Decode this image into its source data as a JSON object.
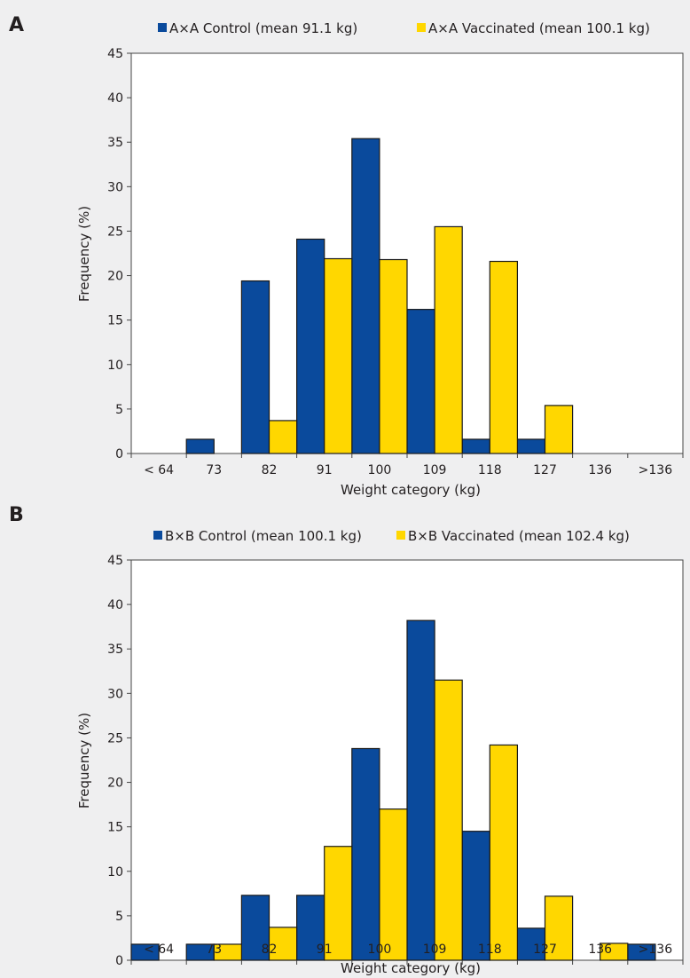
{
  "colors": {
    "control": "#0a4a9c",
    "vaccinated": "#ffd700",
    "edge": "#1a1a1a",
    "plot_bg": "#ffffff"
  },
  "chart_data": [
    {
      "type": "bar",
      "panel_label": "A",
      "categories": [
        "< 64",
        "73",
        "82",
        "91",
        "100",
        "109",
        "118",
        "127",
        "136",
        ">136"
      ],
      "series": [
        {
          "name": "A×A Control (mean 91.1 kg)",
          "key": "control",
          "values": [
            0,
            1.6,
            19.4,
            24.1,
            35.4,
            16.2,
            1.6,
            1.6,
            0,
            0
          ]
        },
        {
          "name": "A×A Vaccinated (mean 100.1 kg)",
          "key": "vaccinated",
          "values": [
            0,
            0,
            3.7,
            21.9,
            21.8,
            25.5,
            21.6,
            5.4,
            0,
            0
          ]
        }
      ],
      "xlabel": "Weight category (kg)",
      "ylabel": "Frequency (%)",
      "ylim": [
        0,
        45
      ],
      "yticks": [
        0,
        5,
        10,
        15,
        20,
        25,
        30,
        35,
        40,
        45
      ],
      "grid": false,
      "legend": "top"
    },
    {
      "type": "bar",
      "panel_label": "B",
      "categories": [
        "< 64",
        "73",
        "82",
        "91",
        "100",
        "109",
        "118",
        "127",
        "136",
        ">136"
      ],
      "series": [
        {
          "name": "B×B Control (mean 100.1 kg)",
          "key": "control",
          "values": [
            1.8,
            1.8,
            7.3,
            7.3,
            23.8,
            38.2,
            14.5,
            3.6,
            0,
            1.8
          ]
        },
        {
          "name": "B×B Vaccinated (mean 102.4 kg)",
          "key": "vaccinated",
          "values": [
            0,
            1.8,
            3.7,
            12.8,
            17.0,
            31.5,
            24.2,
            7.2,
            1.9,
            0
          ]
        }
      ],
      "xlabel": "Weight category (kg)",
      "ylabel": "Frequency (%)",
      "ylim": [
        0,
        45
      ],
      "yticks": [
        0,
        5,
        10,
        15,
        20,
        25,
        30,
        35,
        40,
        45
      ],
      "grid": false,
      "legend": "top"
    }
  ]
}
